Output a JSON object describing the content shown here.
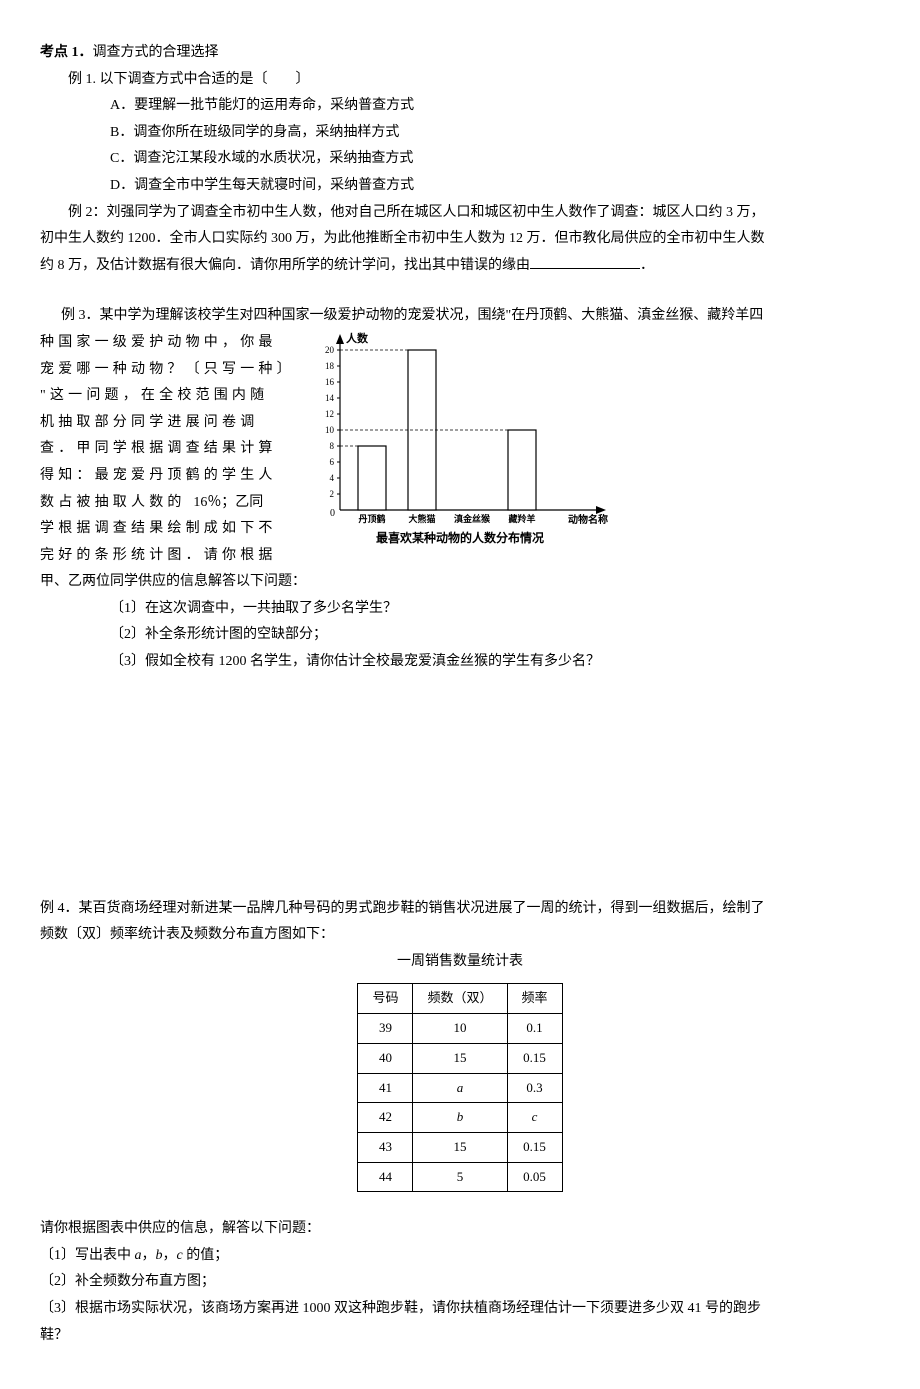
{
  "kaodian": {
    "title": "考点 1．",
    "subtitle": "调查方式的合理选择"
  },
  "ex1": {
    "stem": "例 1. 以下调查方式中合适的是〔　　〕",
    "optA": "A．要理解一批节能灯的运用寿命，采纳普查方式",
    "optB": "B．调查你所在班级同学的身高，采纳抽样方式",
    "optC": "C．调查沱江某段水域的水质状况，采纳抽查方式",
    "optD": "D．调查全市中学生每天就寝时间，采纳普查方式"
  },
  "ex2": {
    "line1": "例 2：刘强同学为了调查全市初中生人数，他对自己所在城区人口和城区初中生人数作了调查：城区人口约 3 万，",
    "line2a": "初中生人数约 1200．全市人口实际约 300 万，为此他推断全市初中生人数为 12 万．但市教化局供应的全市初中生人数",
    "line2b": "约 8 万，及估计数据有很大偏向．请你用所学的统计学问，找出其中错误的缘由",
    "line2c": "．"
  },
  "ex3": {
    "intro": "例 3．某中学为理解该校学生对四种国家一级爱护动物的宠爱状况，围绕\"在丹顶鹤、大熊猫、滇金丝猴、藏羚羊四",
    "body1": "种国家一级爱护动物中，你最",
    "body2": "宠爱哪一种动物？〔只写一种〕",
    "body3": "\"这一问题，在全校范围内随",
    "body4": "机抽取部分同学进展问卷调",
    "body5": "查．甲同学根据调查结果计算",
    "body6": "得知：最宠爱丹顶鹤的学生人",
    "body7a": "数占被抽取人数的",
    "body7b": "16％；乙同",
    "body8": "学根据调查结果绘制成如下不",
    "body9": "完好的条形统计图．请你根据",
    "body10": "甲、乙两位同学供应的信息解答以下问题：",
    "q1": "〔1〕在这次调查中，一共抽取了多少名学生？",
    "q2": "〔2〕补全条形统计图的空缺部分；",
    "q3": "〔3〕假如全校有 1200 名学生，请你估计全校最宠爱滇金丝猴的学生有多少名？"
  },
  "chart": {
    "ylabel": "人数",
    "xlabel": "动物名称",
    "caption": "最喜欢某种动物的人数分布情况",
    "yticks": [
      0,
      2,
      4,
      6,
      8,
      10,
      12,
      14,
      16,
      18,
      20
    ],
    "categories": [
      "丹顶鹤",
      "大熊猫",
      "滇金丝猴",
      "藏羚羊"
    ],
    "values": [
      8,
      20,
      null,
      10
    ],
    "bar_fill": "#ffffff",
    "bar_stroke": "#000000",
    "grid_color": "#000000",
    "axis_color": "#000000",
    "bg": "#ffffff",
    "font_size": 9,
    "ylim": [
      0,
      20
    ]
  },
  "ex4": {
    "intro1": "例 4．某百货商场经理对新进某一品牌几种号码的男式跑步鞋的销售状况进展了一周的统计，得到一组数据后，绘制了",
    "intro2": "频数〔双〕频率统计表及频数分布直方图如下：",
    "table_title": "一周销售数量统计表",
    "columns": [
      "号码",
      "频数（双）",
      "频率"
    ],
    "rows": [
      [
        "39",
        "10",
        "0.1"
      ],
      [
        "40",
        "15",
        "0.15"
      ],
      [
        "41",
        "a",
        "0.3"
      ],
      [
        "42",
        "b",
        "c"
      ],
      [
        "43",
        "15",
        "0.15"
      ],
      [
        "44",
        "5",
        "0.05"
      ]
    ],
    "q_intro": "请你根据图表中供应的信息，解答以下问题：",
    "q1a": "〔1〕写出表中 ",
    "q1b": "a",
    "q1c": "，",
    "q1d": "b",
    "q1e": "，",
    "q1f": "c",
    "q1g": " 的值；",
    "q2": "〔2〕补全频数分布直方图；",
    "q3a": "〔3〕根据市场实际状况，该商场方案再进 1000 双这种跑步鞋，请你扶植商场经理估计一下须要进多少双 41 号的跑步",
    "q3b": "鞋？"
  }
}
